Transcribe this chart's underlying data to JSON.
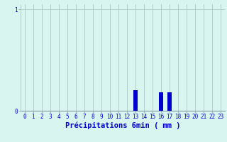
{
  "xlabel": "Précipitations 6min ( mm )",
  "xlim": [
    -0.5,
    23.5
  ],
  "ylim": [
    0,
    1.05
  ],
  "yticks": [
    0,
    1
  ],
  "hours": [
    0,
    1,
    2,
    3,
    4,
    5,
    6,
    7,
    8,
    9,
    10,
    11,
    12,
    13,
    14,
    15,
    16,
    17,
    18,
    19,
    20,
    21,
    22,
    23
  ],
  "values": [
    0,
    0,
    0,
    0,
    0,
    0,
    0,
    0,
    0,
    0,
    0,
    0,
    0,
    0.2,
    0,
    0,
    0.18,
    0.18,
    0,
    0,
    0,
    0,
    0,
    0
  ],
  "bar_color": "#0000cc",
  "bg_color": "#d8f5f0",
  "grid_color": "#a8c8c0",
  "axis_color": "#8899aa",
  "text_color": "#0000cc",
  "tick_font_size": 5.5,
  "label_font_size": 7.5
}
